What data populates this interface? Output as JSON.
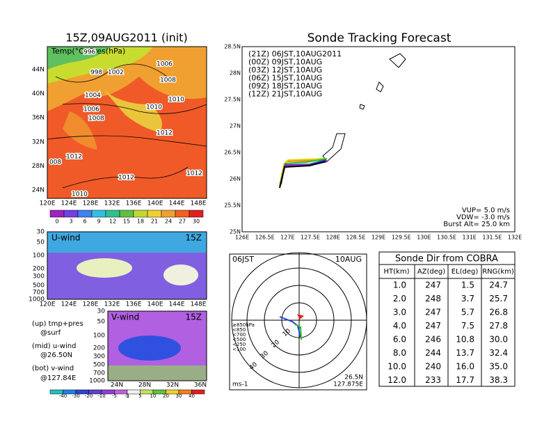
{
  "left": {
    "title": "15Z,09AUG2011 (init)",
    "map_label": "Temp(°C) Pres(hPa)",
    "contours": [
      "996",
      "998",
      "1002",
      "1006",
      "1008",
      "1004",
      "1006",
      "1010",
      "1010",
      "1008",
      "1012",
      "1012",
      "1012",
      "1012",
      "1010",
      "008"
    ],
    "lats": [
      "44N",
      "40N",
      "36N",
      "32N",
      "28N",
      "24N"
    ],
    "lons": [
      "120E",
      "124E",
      "128E",
      "132E",
      "136E",
      "140E",
      "144E",
      "148E"
    ],
    "temp_colorbar": [
      "0",
      "3",
      "6",
      "9",
      "12",
      "15",
      "18",
      "21",
      "24",
      "27",
      "30"
    ],
    "uwind": {
      "label": "U-wind",
      "time": "15Z",
      "levels": [
        "30",
        "50",
        "100",
        "200",
        "300",
        "500",
        "700",
        "1000"
      ],
      "lons": [
        "120E",
        "124E",
        "128E",
        "132E",
        "136E",
        "140E",
        "144E",
        "148E"
      ]
    },
    "notes": [
      "(up) tmp+pres",
      "@surf",
      "(mid) u-wind",
      "@26.50N",
      "(bot) v-wind",
      "@127.84E"
    ],
    "vwind": {
      "label": "V-wind",
      "time": "15Z",
      "levels": [
        "30",
        "50",
        "100",
        "200",
        "300",
        "500",
        "700",
        "1000"
      ],
      "lats": [
        "24N",
        "28N",
        "32N",
        "36N"
      ]
    },
    "wind_colorbar": [
      "-40",
      "-30",
      "-20",
      "-10",
      "-5",
      "-1",
      "1",
      "5",
      "10",
      "20",
      "30",
      "40"
    ]
  },
  "track": {
    "title": "Sonde Tracking Forecast",
    "lats": [
      "28.5N",
      "28N",
      "27.5N",
      "27N",
      "26.5N",
      "26N",
      "25.5N",
      "25N"
    ],
    "lons": [
      "126E",
      "126.5E",
      "127E",
      "127.5E",
      "128E",
      "128.5E",
      "129E",
      "129.5E",
      "130E",
      "130.5E",
      "131E",
      "131.5E",
      "132E"
    ],
    "legend": [
      {
        "name": "(21Z) 06JST,10AUG2011",
        "color": "#000000"
      },
      {
        "name": "(00Z) 09JST,10AUG",
        "color": "#a020c0"
      },
      {
        "name": "(03Z) 12JST,10AUG",
        "color": "#2040e0"
      },
      {
        "name": "(06Z) 15JST,10AUG",
        "color": "#20c020"
      },
      {
        "name": "(09Z) 18JST,10AUG",
        "color": "#e0d000"
      },
      {
        "name": "(12Z) 21JST,10AUG",
        "color": "#f08020"
      }
    ],
    "params": [
      "VUP= 5.0 m/s",
      "VDW= -3.0 m/s",
      "Burst Alt= 25.0 km"
    ]
  },
  "polar": {
    "time": "06JST",
    "date": "10AUG",
    "levels": [
      "≥850hPa",
      "<850",
      "<700",
      "<500",
      "<250",
      "<100"
    ],
    "lat": "26.5N",
    "lon": "127.875E",
    "unit": "ms-1",
    "rings": [
      "10",
      "20",
      "30",
      "40"
    ]
  },
  "table": {
    "title": "Sonde Dir from COBRA",
    "header": [
      "HT(km)",
      "AZ(deg)",
      "EL(deg)",
      "RNG(km)"
    ],
    "rows": [
      [
        "1.0",
        "247",
        "1.5",
        "24.7"
      ],
      [
        "2.0",
        "248",
        "3.7",
        "25.7"
      ],
      [
        "3.0",
        "247",
        "5.7",
        "26.8"
      ],
      [
        "4.0",
        "247",
        "7.5",
        "27.8"
      ],
      [
        "6.0",
        "246",
        "10.8",
        "30.0"
      ],
      [
        "8.0",
        "244",
        "13.7",
        "32.4"
      ],
      [
        "10.0",
        "240",
        "16.0",
        "35.0"
      ],
      [
        "12.0",
        "233",
        "17.7",
        "38.3"
      ]
    ]
  }
}
